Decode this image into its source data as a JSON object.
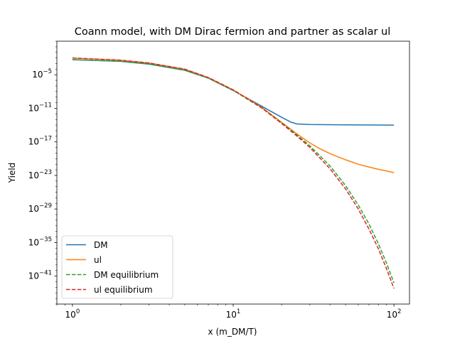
{
  "chart_data": {
    "type": "line",
    "title": "Coann model, with DM Dirac fermion and partner as scalar ul",
    "xlabel": "x (m_DM/T)",
    "ylabel": "Yield",
    "xscale": "log",
    "yscale": "log",
    "xlim": [
      0.8,
      125
    ],
    "ylim_exponents": [
      -46,
      1
    ],
    "x_ticks": [
      {
        "value": 1,
        "base": "10",
        "exp": "0"
      },
      {
        "value": 10,
        "base": "10",
        "exp": "1"
      },
      {
        "value": 100,
        "base": "10",
        "exp": "2"
      }
    ],
    "y_ticks": [
      {
        "exponent": -5,
        "base": "10",
        "label": "−5"
      },
      {
        "exponent": -11,
        "base": "10",
        "label": "−11"
      },
      {
        "exponent": -17,
        "base": "10",
        "label": "−17"
      },
      {
        "exponent": -23,
        "base": "10",
        "label": "−23"
      },
      {
        "exponent": -29,
        "base": "10",
        "label": "−29"
      },
      {
        "exponent": -35,
        "base": "10",
        "label": "−35"
      },
      {
        "exponent": -41,
        "base": "10",
        "label": "−41"
      }
    ],
    "grid": false,
    "legend_position": "lower-left",
    "series": [
      {
        "name": "DM",
        "color": "#1f77b4",
        "dash": "solid",
        "points": [
          [
            1,
            -2.3
          ],
          [
            2,
            -2.6
          ],
          [
            3,
            -3.1
          ],
          [
            5,
            -4.2
          ],
          [
            7,
            -5.6
          ],
          [
            10,
            -7.8
          ],
          [
            15,
            -10.6
          ],
          [
            20,
            -12.6
          ],
          [
            23,
            -13.5
          ],
          [
            25,
            -13.8
          ],
          [
            30,
            -13.9
          ],
          [
            50,
            -13.95
          ],
          [
            100,
            -14.0
          ]
        ]
      },
      {
        "name": "ul",
        "color": "#ff7f0e",
        "dash": "solid",
        "points": [
          [
            1,
            -2.0
          ],
          [
            2,
            -2.4
          ],
          [
            3,
            -2.9
          ],
          [
            5,
            -4.0
          ],
          [
            7,
            -5.5
          ],
          [
            10,
            -7.7
          ],
          [
            15,
            -10.8
          ],
          [
            20,
            -13.5
          ],
          [
            25,
            -15.6
          ],
          [
            30,
            -17.2
          ],
          [
            35,
            -18.3
          ],
          [
            40,
            -19.1
          ],
          [
            50,
            -20.2
          ],
          [
            60,
            -21.0
          ],
          [
            70,
            -21.5
          ],
          [
            80,
            -21.9
          ],
          [
            90,
            -22.2
          ],
          [
            100,
            -22.5
          ]
        ]
      },
      {
        "name": "DM equilibrium",
        "color": "#2ca02c",
        "dash": "dashed",
        "points": [
          [
            1,
            -2.3
          ],
          [
            2,
            -2.6
          ],
          [
            3,
            -3.1
          ],
          [
            5,
            -4.2
          ],
          [
            7,
            -5.6
          ],
          [
            10,
            -7.8
          ],
          [
            15,
            -10.9
          ],
          [
            20,
            -13.6
          ],
          [
            25,
            -15.8
          ],
          [
            30,
            -17.7
          ],
          [
            40,
            -21.3
          ],
          [
            50,
            -24.8
          ],
          [
            60,
            -28.3
          ],
          [
            70,
            -31.7
          ],
          [
            80,
            -35.2
          ],
          [
            90,
            -38.7
          ],
          [
            100,
            -42.2
          ]
        ]
      },
      {
        "name": "ul equilibrium",
        "color": "#d62728",
        "dash": "dashed",
        "points": [
          [
            1,
            -2.0
          ],
          [
            2,
            -2.4
          ],
          [
            3,
            -2.9
          ],
          [
            5,
            -4.0
          ],
          [
            7,
            -5.5
          ],
          [
            10,
            -7.7
          ],
          [
            15,
            -10.9
          ],
          [
            20,
            -13.7
          ],
          [
            25,
            -16.0
          ],
          [
            30,
            -18.0
          ],
          [
            40,
            -21.8
          ],
          [
            50,
            -25.4
          ],
          [
            60,
            -29.0
          ],
          [
            70,
            -32.6
          ],
          [
            80,
            -36.1
          ],
          [
            90,
            -39.7
          ],
          [
            100,
            -43.2
          ]
        ]
      }
    ]
  }
}
